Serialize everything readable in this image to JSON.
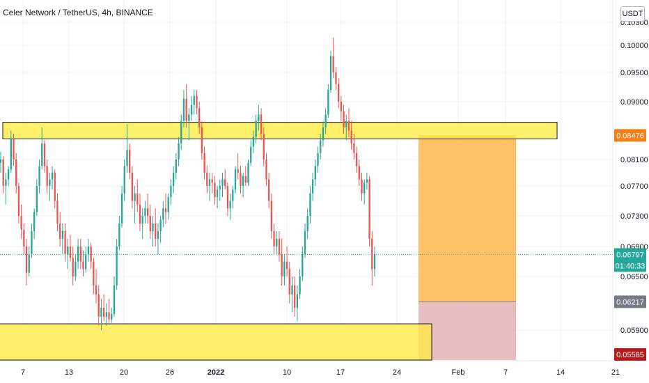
{
  "header": {
    "title": "Celer Network / TetherUS, 4h, BINANCE"
  },
  "price_axis": {
    "currency_button": "USDT"
  },
  "chart_data": {
    "type": "candlestick",
    "title": "Celer Network / TetherUS, 4h, BINANCE",
    "y_ticks": [
      "0.10300",
      "0.10000",
      "0.09500",
      "0.09000",
      "0.08100",
      "0.07700",
      "0.07300",
      "0.06900",
      "0.06500",
      "0.05900"
    ],
    "x_ticks": [
      "7",
      "13",
      "20",
      "26",
      "2022",
      "10",
      "17",
      "24",
      "Feb",
      "7",
      "14",
      "21"
    ],
    "price_labels": [
      {
        "value": "0.08476",
        "role": "position-entry",
        "color": "#f57f17"
      },
      {
        "value": "0.06797",
        "sub": "01:40:33",
        "role": "last-price",
        "color": "#26a69a"
      },
      {
        "value": "0.06217",
        "role": "position-stop",
        "color": "#787b86"
      },
      {
        "value": "0.05585",
        "role": "position-target",
        "color": "#b71c1c"
      }
    ],
    "colors": {
      "up": "#26a69a",
      "down": "#ef5350",
      "zone": "#ffeb3b",
      "position_profit": "#ffb74d",
      "position_loss": "#e0a3a6"
    },
    "zones": [
      {
        "low": 0.0842,
        "high": 0.0868
      },
      {
        "low": 0.0555,
        "high": 0.0597
      }
    ],
    "position": {
      "entry": 0.08476,
      "stop": 0.06217,
      "target": 0.05585
    },
    "candles": [
      [
        0.0805,
        0.0822,
        0.079,
        0.081
      ],
      [
        0.081,
        0.0815,
        0.076,
        0.077
      ],
      [
        0.077,
        0.079,
        0.0745,
        0.078
      ],
      [
        0.078,
        0.08,
        0.077,
        0.0795
      ],
      [
        0.0795,
        0.0855,
        0.079,
        0.0842
      ],
      [
        0.0842,
        0.085,
        0.08,
        0.081
      ],
      [
        0.081,
        0.082,
        0.076,
        0.077
      ],
      [
        0.077,
        0.0775,
        0.072,
        0.073
      ],
      [
        0.073,
        0.0745,
        0.07,
        0.0712
      ],
      [
        0.0712,
        0.072,
        0.068,
        0.069
      ],
      [
        0.069,
        0.07,
        0.064,
        0.0655
      ],
      [
        0.0655,
        0.069,
        0.065,
        0.068
      ],
      [
        0.068,
        0.072,
        0.0675,
        0.071
      ],
      [
        0.071,
        0.074,
        0.07,
        0.0735
      ],
      [
        0.0735,
        0.078,
        0.073,
        0.077
      ],
      [
        0.077,
        0.081,
        0.076,
        0.08
      ],
      [
        0.08,
        0.086,
        0.0795,
        0.0835
      ],
      [
        0.0835,
        0.084,
        0.079,
        0.08
      ],
      [
        0.08,
        0.081,
        0.076,
        0.077
      ],
      [
        0.077,
        0.079,
        0.075,
        0.078
      ],
      [
        0.078,
        0.08,
        0.0765,
        0.079
      ],
      [
        0.079,
        0.0795,
        0.074,
        0.075
      ],
      [
        0.075,
        0.076,
        0.071,
        0.072
      ],
      [
        0.072,
        0.0735,
        0.069,
        0.07
      ],
      [
        0.07,
        0.072,
        0.068,
        0.071
      ],
      [
        0.071,
        0.072,
        0.067,
        0.068
      ],
      [
        0.068,
        0.07,
        0.066,
        0.069
      ],
      [
        0.069,
        0.0705,
        0.067,
        0.0675
      ],
      [
        0.0675,
        0.069,
        0.064,
        0.065
      ],
      [
        0.065,
        0.068,
        0.0645,
        0.067
      ],
      [
        0.067,
        0.07,
        0.066,
        0.069
      ],
      [
        0.069,
        0.07,
        0.066,
        0.067
      ],
      [
        0.067,
        0.0685,
        0.065,
        0.066
      ],
      [
        0.066,
        0.069,
        0.0655,
        0.068
      ],
      [
        0.068,
        0.07,
        0.067,
        0.069
      ],
      [
        0.069,
        0.0695,
        0.066,
        0.067
      ],
      [
        0.067,
        0.0675,
        0.063,
        0.064
      ],
      [
        0.064,
        0.066,
        0.062,
        0.063
      ],
      [
        0.063,
        0.064,
        0.0595,
        0.0605
      ],
      [
        0.0605,
        0.0625,
        0.059,
        0.0615
      ],
      [
        0.0615,
        0.063,
        0.06,
        0.0605
      ],
      [
        0.0605,
        0.062,
        0.0595,
        0.061
      ],
      [
        0.061,
        0.0625,
        0.0598,
        0.0602
      ],
      [
        0.0602,
        0.0615,
        0.0598,
        0.0608
      ],
      [
        0.0608,
        0.065,
        0.0605,
        0.064
      ],
      [
        0.064,
        0.07,
        0.0635,
        0.069
      ],
      [
        0.069,
        0.073,
        0.0685,
        0.072
      ],
      [
        0.072,
        0.077,
        0.0715,
        0.076
      ],
      [
        0.076,
        0.081,
        0.075,
        0.08
      ],
      [
        0.08,
        0.0865,
        0.079,
        0.0825
      ],
      [
        0.0825,
        0.0835,
        0.078,
        0.079
      ],
      [
        0.079,
        0.08,
        0.074,
        0.075
      ],
      [
        0.075,
        0.077,
        0.072,
        0.076
      ],
      [
        0.076,
        0.078,
        0.0735,
        0.0745
      ],
      [
        0.0745,
        0.076,
        0.071,
        0.072
      ],
      [
        0.072,
        0.074,
        0.07,
        0.073
      ],
      [
        0.073,
        0.075,
        0.072,
        0.074
      ],
      [
        0.074,
        0.076,
        0.072,
        0.073
      ],
      [
        0.073,
        0.0745,
        0.07,
        0.071
      ],
      [
        0.071,
        0.073,
        0.069,
        0.072
      ],
      [
        0.072,
        0.074,
        0.069,
        0.07
      ],
      [
        0.07,
        0.072,
        0.068,
        0.071
      ],
      [
        0.071,
        0.073,
        0.0695,
        0.0725
      ],
      [
        0.0725,
        0.075,
        0.0715,
        0.074
      ],
      [
        0.074,
        0.076,
        0.072,
        0.0735
      ],
      [
        0.0735,
        0.076,
        0.0725,
        0.0755
      ],
      [
        0.0755,
        0.078,
        0.0745,
        0.077
      ],
      [
        0.077,
        0.08,
        0.076,
        0.079
      ],
      [
        0.079,
        0.082,
        0.078,
        0.081
      ],
      [
        0.081,
        0.0845,
        0.08,
        0.0835
      ],
      [
        0.0835,
        0.088,
        0.0825,
        0.087
      ],
      [
        0.087,
        0.092,
        0.086,
        0.0905
      ],
      [
        0.0905,
        0.093,
        0.086,
        0.087
      ],
      [
        0.087,
        0.089,
        0.084,
        0.088
      ],
      [
        0.088,
        0.091,
        0.087,
        0.0895
      ],
      [
        0.0895,
        0.092,
        0.088,
        0.091
      ],
      [
        0.091,
        0.092,
        0.088,
        0.089
      ],
      [
        0.089,
        0.09,
        0.085,
        0.086
      ],
      [
        0.086,
        0.087,
        0.081,
        0.082
      ],
      [
        0.082,
        0.083,
        0.078,
        0.079
      ],
      [
        0.079,
        0.08,
        0.076,
        0.077
      ],
      [
        0.077,
        0.079,
        0.075,
        0.078
      ],
      [
        0.078,
        0.079,
        0.076,
        0.0775
      ],
      [
        0.0775,
        0.0785,
        0.0745,
        0.0755
      ],
      [
        0.0755,
        0.077,
        0.074,
        0.0765
      ],
      [
        0.0765,
        0.078,
        0.075,
        0.077
      ],
      [
        0.077,
        0.079,
        0.0755,
        0.078
      ],
      [
        0.078,
        0.0795,
        0.0765,
        0.077
      ],
      [
        0.077,
        0.0775,
        0.073,
        0.074
      ],
      [
        0.074,
        0.076,
        0.0725,
        0.075
      ],
      [
        0.075,
        0.077,
        0.074,
        0.0765
      ],
      [
        0.0765,
        0.08,
        0.076,
        0.0795
      ],
      [
        0.0795,
        0.082,
        0.078,
        0.079
      ],
      [
        0.079,
        0.08,
        0.076,
        0.077
      ],
      [
        0.077,
        0.079,
        0.0755,
        0.0785
      ],
      [
        0.0785,
        0.08,
        0.077,
        0.0775
      ],
      [
        0.0775,
        0.081,
        0.077,
        0.0805
      ],
      [
        0.0805,
        0.084,
        0.08,
        0.083
      ],
      [
        0.083,
        0.0855,
        0.082,
        0.0845
      ],
      [
        0.0845,
        0.088,
        0.0835,
        0.087
      ],
      [
        0.087,
        0.0895,
        0.0855,
        0.088
      ],
      [
        0.088,
        0.089,
        0.084,
        0.085
      ],
      [
        0.085,
        0.086,
        0.08,
        0.081
      ],
      [
        0.081,
        0.082,
        0.077,
        0.078
      ],
      [
        0.078,
        0.079,
        0.074,
        0.075
      ],
      [
        0.075,
        0.076,
        0.07,
        0.071
      ],
      [
        0.071,
        0.072,
        0.068,
        0.069
      ],
      [
        0.069,
        0.071,
        0.068,
        0.07
      ],
      [
        0.07,
        0.071,
        0.067,
        0.068
      ],
      [
        0.068,
        0.07,
        0.064,
        0.065
      ],
      [
        0.065,
        0.068,
        0.064,
        0.067
      ],
      [
        0.067,
        0.069,
        0.065,
        0.066
      ],
      [
        0.066,
        0.067,
        0.062,
        0.063
      ],
      [
        0.063,
        0.065,
        0.061,
        0.064
      ],
      [
        0.064,
        0.065,
        0.0605,
        0.0615
      ],
      [
        0.0615,
        0.064,
        0.06,
        0.063
      ],
      [
        0.063,
        0.066,
        0.0625,
        0.065
      ],
      [
        0.065,
        0.069,
        0.0645,
        0.068
      ],
      [
        0.068,
        0.072,
        0.0675,
        0.071
      ],
      [
        0.071,
        0.074,
        0.07,
        0.073
      ],
      [
        0.073,
        0.077,
        0.072,
        0.076
      ],
      [
        0.076,
        0.079,
        0.075,
        0.078
      ],
      [
        0.078,
        0.081,
        0.077,
        0.08
      ],
      [
        0.08,
        0.083,
        0.079,
        0.082
      ],
      [
        0.082,
        0.085,
        0.081,
        0.084
      ],
      [
        0.084,
        0.087,
        0.083,
        0.086
      ],
      [
        0.086,
        0.089,
        0.085,
        0.088
      ],
      [
        0.088,
        0.093,
        0.0875,
        0.092
      ],
      [
        0.092,
        0.099,
        0.0915,
        0.098
      ],
      [
        0.098,
        0.101,
        0.094,
        0.095
      ],
      [
        0.095,
        0.096,
        0.092,
        0.093
      ],
      [
        0.093,
        0.094,
        0.089,
        0.09
      ],
      [
        0.09,
        0.091,
        0.087,
        0.0885
      ],
      [
        0.0885,
        0.0895,
        0.085,
        0.086
      ],
      [
        0.086,
        0.088,
        0.084,
        0.087
      ],
      [
        0.087,
        0.089,
        0.0845,
        0.0855
      ],
      [
        0.0855,
        0.087,
        0.0825,
        0.0835
      ],
      [
        0.0835,
        0.085,
        0.081,
        0.082
      ],
      [
        0.082,
        0.083,
        0.079,
        0.08
      ],
      [
        0.08,
        0.081,
        0.077,
        0.078
      ],
      [
        0.078,
        0.079,
        0.075,
        0.076
      ],
      [
        0.076,
        0.078,
        0.0745,
        0.0775
      ],
      [
        0.0775,
        0.079,
        0.0765,
        0.078
      ],
      [
        0.078,
        0.0785,
        0.069,
        0.07
      ],
      [
        0.07,
        0.071,
        0.064,
        0.066
      ],
      [
        0.066,
        0.069,
        0.065,
        0.068
      ]
    ]
  }
}
